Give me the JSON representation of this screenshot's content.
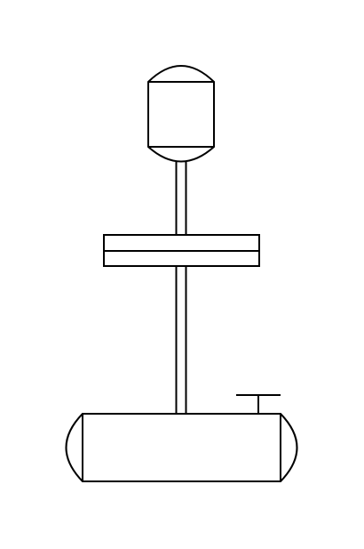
{
  "diagram": {
    "type": "process-equipment-schematic",
    "components": [
      {
        "id": "drive-motor",
        "shape": "capsule"
      },
      {
        "id": "shaft",
        "shape": "double-line"
      },
      {
        "id": "coupling-flange",
        "shape": "split-rectangle"
      },
      {
        "id": "vessel",
        "shape": "horizontal-drum"
      },
      {
        "id": "nozzle",
        "shape": "t-stub"
      }
    ],
    "colors": {
      "stroke": "#000000",
      "fill": "#ffffff",
      "background": "#ffffff"
    }
  }
}
